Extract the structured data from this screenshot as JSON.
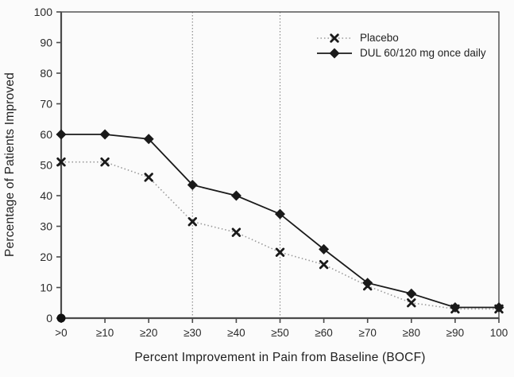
{
  "chart_data": {
    "type": "line",
    "title": "",
    "xlabel": "Percent Improvement in Pain from Baseline (BOCF)",
    "ylabel": "Percentage of Patients Improved",
    "categories": [
      ">0",
      "≥10",
      "≥20",
      "≥30",
      "≥40",
      "≥50",
      "≥60",
      "≥70",
      "≥80",
      "≥90",
      "100"
    ],
    "ylim": [
      0,
      100
    ],
    "yticks": [
      0,
      10,
      20,
      30,
      40,
      50,
      60,
      70,
      80,
      90,
      100
    ],
    "grid": false,
    "legend_position": "top-right-inside",
    "reference_lines": [
      {
        "at_category": "≥30",
        "orientation": "vertical",
        "style": "dotted"
      },
      {
        "at_category": "≥50",
        "orientation": "vertical",
        "style": "dotted"
      }
    ],
    "series": [
      {
        "name": "Placebo",
        "marker": "x",
        "line_style": "dotted",
        "line_color": "#999999",
        "marker_color": "#1a1a1a",
        "values": [
          51,
          51,
          46,
          31.5,
          28,
          21.5,
          17.5,
          10.5,
          5,
          3,
          3
        ]
      },
      {
        "name": "DUL 60/120 mg once daily",
        "marker": "diamond",
        "line_style": "solid",
        "line_color": "#1a1a1a",
        "marker_color": "#1a1a1a",
        "values": [
          60,
          60,
          58.5,
          43.5,
          40,
          34,
          22.5,
          11.5,
          8,
          3.5,
          3.5
        ]
      }
    ],
    "origin_marker": {
      "category": ">0",
      "value": 0,
      "shape": "filled-circle"
    }
  },
  "colors": {
    "axis": "#4a4a4a",
    "tick_text": "#2a2a2a",
    "reference_line": "#8c8c8c",
    "background": "#fbfbfb"
  }
}
